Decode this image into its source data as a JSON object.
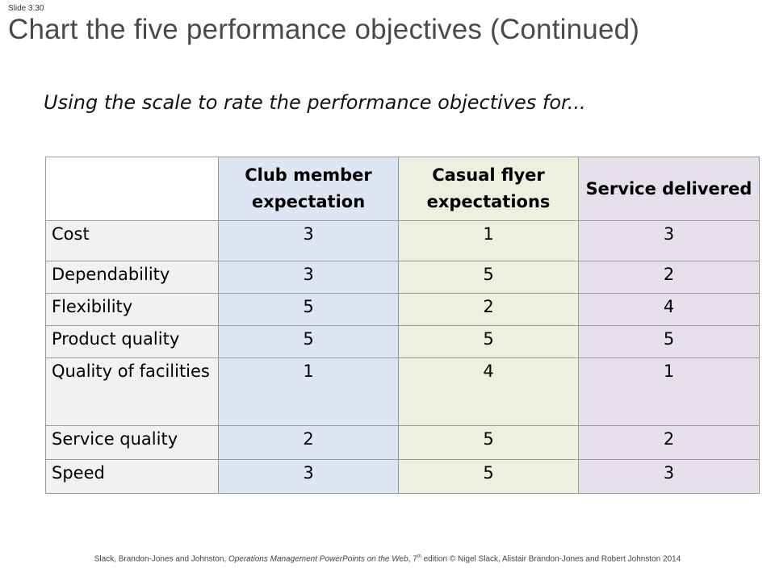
{
  "slide": {
    "number": "Slide 3.30",
    "title": "Chart the five performance objectives (Continued)",
    "subtitle": "Using the scale to rate the performance objectives for..."
  },
  "table": {
    "headers": [
      "",
      "Club member expectation",
      "Casual flyer expectations",
      "Service delivered"
    ],
    "rows": [
      {
        "label": "Cost",
        "values": [
          "3",
          "1",
          "3"
        ]
      },
      {
        "label": "Dependability",
        "values": [
          "3",
          "5",
          "2"
        ]
      },
      {
        "label": "Flexibility",
        "values": [
          "5",
          "2",
          "4"
        ]
      },
      {
        "label": "Product quality",
        "values": [
          "5",
          "5",
          "5"
        ]
      },
      {
        "label": "Quality of facilities",
        "values": [
          "1",
          "4",
          "1"
        ]
      },
      {
        "label": "Service quality",
        "values": [
          "2",
          "5",
          "2"
        ]
      },
      {
        "label": "Speed",
        "values": [
          "3",
          "5",
          "3"
        ]
      }
    ]
  },
  "footer": {
    "authors": "Slack, Brandon-Jones and Johnston, ",
    "book_title": "Operations Management PowerPoints on the Web",
    "edition_prefix": ", 7",
    "edition_sup": "th",
    "rest": " edition © Nigel Slack, Alistair Brandon-Jones and Robert Johnston 2014"
  },
  "colors": {
    "club_member_column": "#dde7f3",
    "casual_flyer_column": "#ebf1de",
    "service_delivered_column": "#e5e0ec",
    "label_column": "#f1f1f1"
  }
}
